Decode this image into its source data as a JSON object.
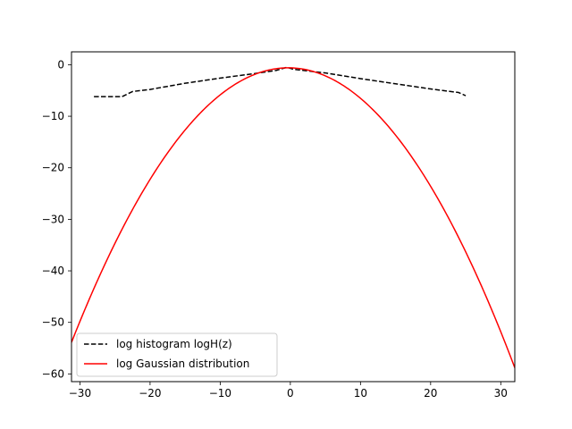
{
  "chart_data": {
    "type": "line",
    "title": "",
    "xlabel": "",
    "ylabel": "",
    "xlim": [
      -31.2,
      32.0
    ],
    "ylim": [
      -61.5,
      2.5
    ],
    "xticks": [
      -30,
      -20,
      -10,
      0,
      10,
      20,
      30
    ],
    "yticks": [
      0,
      -10,
      -20,
      -30,
      -40,
      -50,
      -60
    ],
    "grid": false,
    "legend_position": "lower-left",
    "series": [
      {
        "name": "log histogram logH(z)",
        "color": "#000000",
        "style": "dashed",
        "x": [
          -28.0,
          -24.0,
          -22.5,
          -20,
          -15,
          -10,
          -5,
          -2,
          -0.5,
          0.5,
          5,
          10,
          15,
          20,
          24,
          25
        ],
        "y": [
          -6.2,
          -6.2,
          -5.2,
          -4.8,
          -3.6,
          -2.6,
          -1.7,
          -1.1,
          -0.5,
          -0.9,
          -1.6,
          -2.7,
          -3.7,
          -4.7,
          -5.4,
          -6.0
        ]
      },
      {
        "name": "log Gaussian distribution",
        "color": "#ff0000",
        "style": "solid",
        "function": "gaussian_log",
        "mean": -0.3,
        "peak": -0.6,
        "curvature": 0.0558,
        "x_range": [
          -31.2,
          32.0
        ]
      }
    ]
  }
}
